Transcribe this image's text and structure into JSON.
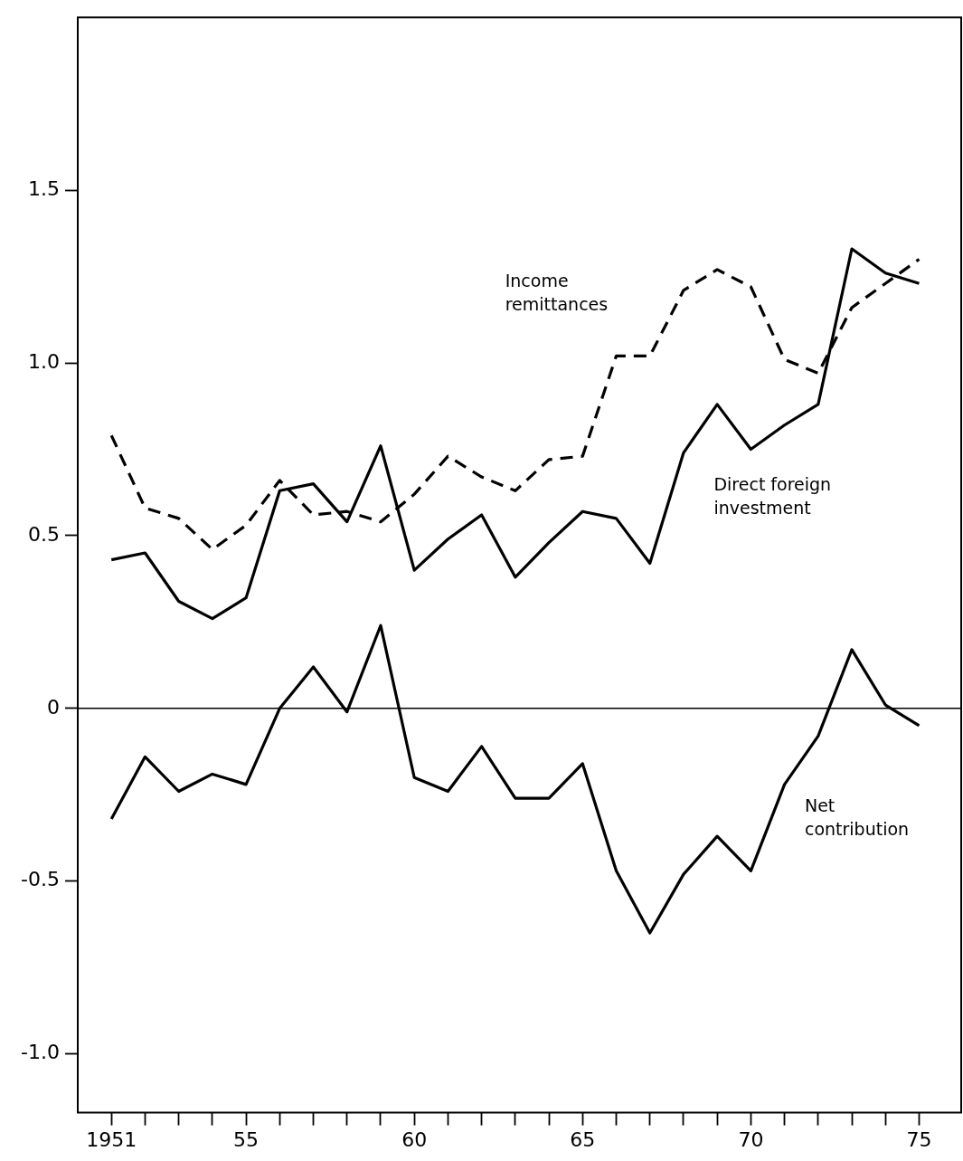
{
  "chart_data": {
    "type": "line",
    "legend": false,
    "grid": false,
    "marker": "none",
    "x": [
      1951,
      1952,
      1953,
      1954,
      1955,
      1956,
      1957,
      1958,
      1959,
      1960,
      1961,
      1962,
      1963,
      1964,
      1965,
      1966,
      1967,
      1968,
      1969,
      1970,
      1971,
      1972,
      1973,
      1974,
      1975
    ],
    "xlim": [
      1950,
      1976.25
    ],
    "xticks": [
      {
        "value": 1951,
        "label": "1951"
      },
      {
        "value": 1952,
        "label": null
      },
      {
        "value": 1953,
        "label": null
      },
      {
        "value": 1954,
        "label": null
      },
      {
        "value": 1955,
        "label": "55"
      },
      {
        "value": 1956,
        "label": null
      },
      {
        "value": 1957,
        "label": null
      },
      {
        "value": 1958,
        "label": null
      },
      {
        "value": 1959,
        "label": null
      },
      {
        "value": 1960,
        "label": "60"
      },
      {
        "value": 1961,
        "label": null
      },
      {
        "value": 1962,
        "label": null
      },
      {
        "value": 1963,
        "label": null
      },
      {
        "value": 1964,
        "label": null
      },
      {
        "value": 1965,
        "label": "65"
      },
      {
        "value": 1966,
        "label": null
      },
      {
        "value": 1967,
        "label": null
      },
      {
        "value": 1968,
        "label": null
      },
      {
        "value": 1969,
        "label": null
      },
      {
        "value": 1970,
        "label": "70"
      },
      {
        "value": 1971,
        "label": null
      },
      {
        "value": 1972,
        "label": null
      },
      {
        "value": 1973,
        "label": null
      },
      {
        "value": 1974,
        "label": null
      },
      {
        "value": 1975,
        "label": "75"
      }
    ],
    "ylim": [
      -1.17,
      2.0
    ],
    "yticks": [
      {
        "value": -1,
        "label": "-1.0"
      },
      {
        "value": -0.5,
        "label": "-0.5"
      },
      0,
      {
        "value": 0.5,
        "label": "0.5"
      },
      {
        "value": 1,
        "label": "1.0"
      },
      {
        "value": 1.5,
        "label": "1.5"
      }
    ],
    "ref_lines": [
      {
        "axis": "y",
        "value": 0,
        "color": "#000000"
      }
    ],
    "series": [
      {
        "name": "Income remittances",
        "color": "#000000",
        "line_style": "dashed",
        "values": [
          0.79,
          0.58,
          0.55,
          0.46,
          0.53,
          0.66,
          0.56,
          0.57,
          0.54,
          0.62,
          0.73,
          0.67,
          0.63,
          0.72,
          0.73,
          1.02,
          1.02,
          1.21,
          1.27,
          1.22,
          1.01,
          0.97,
          1.16,
          1.23,
          1.3
        ]
      },
      {
        "name": "Direct foreign investment",
        "color": "#000000",
        "line_style": "solid",
        "values": [
          0.43,
          0.45,
          0.31,
          0.26,
          0.32,
          0.63,
          0.65,
          0.54,
          0.76,
          0.4,
          0.49,
          0.56,
          0.38,
          0.48,
          0.57,
          0.55,
          0.42,
          0.74,
          0.88,
          0.75,
          0.82,
          0.88,
          1.33,
          1.26,
          1.23
        ]
      },
      {
        "name": "Net contribution",
        "color": "#000000",
        "line_style": "solid",
        "values": [
          -0.32,
          -0.14,
          -0.24,
          -0.19,
          -0.22,
          0.0,
          0.12,
          -0.01,
          0.24,
          -0.2,
          -0.24,
          -0.11,
          -0.26,
          -0.26,
          -0.16,
          -0.47,
          -0.65,
          -0.48,
          -0.37,
          -0.47,
          -0.22,
          -0.08,
          0.17,
          0.01,
          -0.05
        ]
      }
    ]
  }
}
